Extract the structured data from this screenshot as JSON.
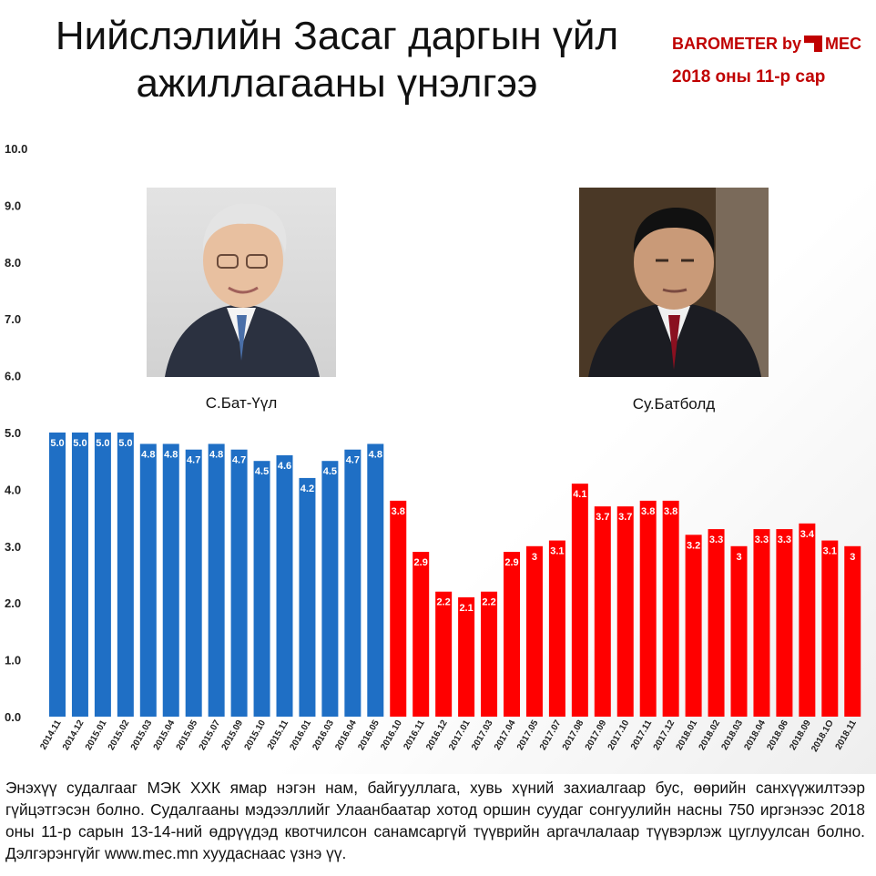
{
  "header": {
    "title_line1": "Нийслэлийн Засаг даргын үйл",
    "title_line2": "ажиллагааны үнэлгээ",
    "brand_left": "BAROMETER by",
    "brand_right": "MEC",
    "period": "2018 оны 11-р сар"
  },
  "persons": [
    {
      "name": "С.Бат-Үүл",
      "color": "#1f6fc5"
    },
    {
      "name": "Су.Батболд",
      "color": "#ff0000"
    }
  ],
  "chart_data": {
    "type": "bar",
    "title": "",
    "xlabel": "",
    "ylabel": "",
    "ylim": [
      0,
      10
    ],
    "yticks": [
      "0.0",
      "1.0",
      "2.0",
      "3.0",
      "4.0",
      "5.0",
      "6.0",
      "7.0",
      "8.0",
      "9.0",
      "10.0"
    ],
    "grid": false,
    "categories": [
      "2014.11",
      "2014.12",
      "2015.01",
      "2015.02",
      "2015.03",
      "2015.04",
      "2015.05",
      "2015.07",
      "2015.09",
      "2015.10",
      "2015.11",
      "2016.01",
      "2016.03",
      "2016.04",
      "2016.05",
      "2016.10",
      "2016.11",
      "2016.12",
      "2017.01",
      "2017.03",
      "2017.04",
      "2017.05",
      "2017.07",
      "2017.08",
      "2017.09",
      "2017.10",
      "2017.11",
      "2017.12",
      "2018.01",
      "2018.02",
      "2018.03",
      "2018.04",
      "2018.06",
      "2018.09",
      "2018.1О",
      "2018.11"
    ],
    "values": [
      5.0,
      5.0,
      5.0,
      5.0,
      4.8,
      4.8,
      4.7,
      4.8,
      4.7,
      4.5,
      4.6,
      4.2,
      4.5,
      4.7,
      4.8,
      3.8,
      2.9,
      2.2,
      2.1,
      2.2,
      2.9,
      3,
      3.1,
      4.1,
      3.7,
      3.7,
      3.8,
      3.8,
      3.2,
      3.3,
      3,
      3.3,
      3.3,
      3.4,
      3.1,
      3
    ],
    "labels": [
      "5.0",
      "5.0",
      "5.0",
      "5.0",
      "4.8",
      "4.8",
      "4.7",
      "4.8",
      "4.7",
      "4.5",
      "4.6",
      "4.2",
      "4.5",
      "4.7",
      "4.8",
      "3.8",
      "2.9",
      "2.2",
      "2.1",
      "2.2",
      "2.9",
      "3",
      "3.1",
      "4.1",
      "3.7",
      "3.7",
      "3.8",
      "3.8",
      "3.2",
      "3.3",
      "3",
      "3.3",
      "3.3",
      "3.4",
      "3.1",
      "3"
    ],
    "series_split": 15,
    "colors": [
      "#1f6fc5",
      "#ff0000"
    ]
  },
  "footnote": "Энэхүү судалгааг МЭК ХХК ямар нэгэн нам, байгууллага, хувь хүний захиалгаар бус, өөрийн санхүүжилтээр гүйцэтгэсэн болно. Судалгааны мэдээллийг Улаанбаатар хотод оршин суудаг сонгуулийн насны 750 иргэнээс 2018 оны 11-р сарын 13-14-ний өдрүүдэд квотчилсон санамсаргүй түүврийн аргачлалаар түүвэрлэж цуглуулсан болно. Дэлгэрэнгүйг www.mec.mn хуудаснаас үзнэ үү."
}
